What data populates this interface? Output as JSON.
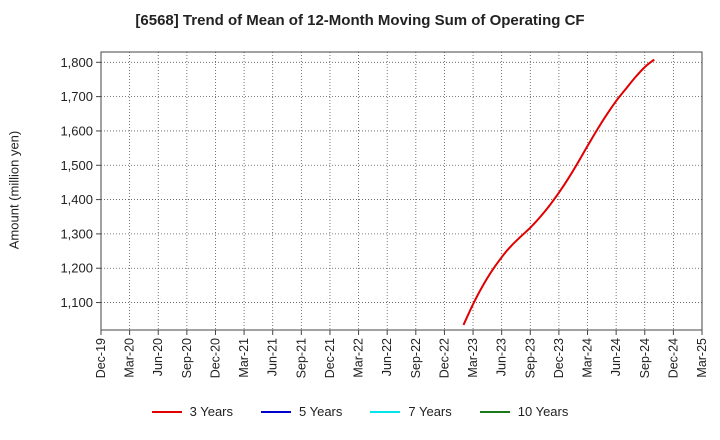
{
  "chart_data": {
    "type": "line",
    "title": "[6568]  Trend of Mean of 12-Month Moving Sum of Operating CF",
    "ylabel": "Amount (million yen)",
    "xlabel": "",
    "ylim": [
      1020,
      1830
    ],
    "yticks": [
      1100,
      1200,
      1300,
      1400,
      1500,
      1600,
      1700,
      1800
    ],
    "ytick_labels": [
      "1,100",
      "1,200",
      "1,300",
      "1,400",
      "1,500",
      "1,600",
      "1,700",
      "1,800"
    ],
    "x_categories": [
      "Dec-19",
      "Mar-20",
      "Jun-20",
      "Sep-20",
      "Dec-20",
      "Mar-21",
      "Jun-21",
      "Sep-21",
      "Dec-21",
      "Mar-22",
      "Jun-22",
      "Sep-22",
      "Dec-22",
      "Mar-23",
      "Jun-23",
      "Sep-23",
      "Dec-23",
      "Mar-24",
      "Jun-24",
      "Sep-24",
      "Dec-24",
      "Mar-25"
    ],
    "grid": true,
    "legend_position": "bottom",
    "series": [
      {
        "name": "3 Years",
        "color": "#e00000",
        "points": [
          [
            "Feb-23",
            1035
          ],
          [
            "Mar-23",
            1095
          ],
          [
            "Apr-23",
            1148
          ],
          [
            "May-23",
            1193
          ],
          [
            "Jun-23",
            1232
          ],
          [
            "Jul-23",
            1265
          ],
          [
            "Aug-23",
            1292
          ],
          [
            "Sep-23",
            1318
          ],
          [
            "Oct-23",
            1348
          ],
          [
            "Nov-23",
            1382
          ],
          [
            "Dec-23",
            1420
          ],
          [
            "Jan-24",
            1462
          ],
          [
            "Feb-24",
            1508
          ],
          [
            "Mar-24",
            1556
          ],
          [
            "Apr-24",
            1603
          ],
          [
            "May-24",
            1647
          ],
          [
            "Jun-24",
            1687
          ],
          [
            "Jul-24",
            1722
          ],
          [
            "Aug-24",
            1756
          ],
          [
            "Sep-24",
            1786
          ],
          [
            "Oct-24",
            1808
          ]
        ]
      },
      {
        "name": "5 Years",
        "color": "#0000cc",
        "points": []
      },
      {
        "name": "7 Years",
        "color": "#00e5ee",
        "points": []
      },
      {
        "name": "10 Years",
        "color": "#1a7a1a",
        "points": []
      }
    ]
  }
}
